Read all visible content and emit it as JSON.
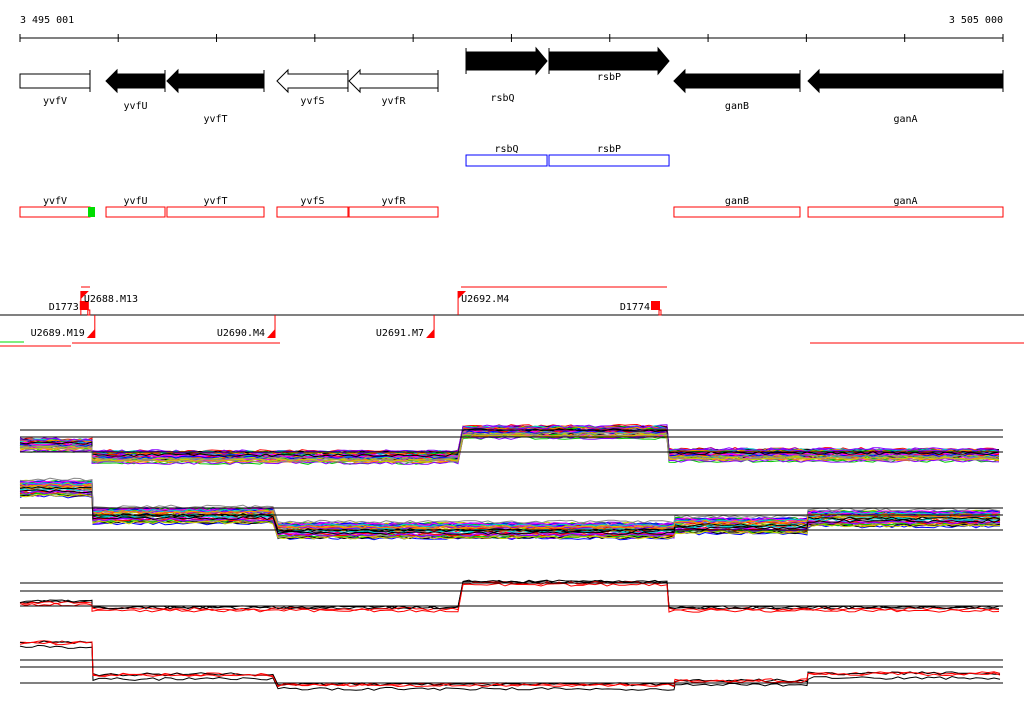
{
  "coordinates": {
    "start_label": "3 495 001",
    "end_label": "3 505 000",
    "start": 3495001,
    "end": 3505000,
    "tick_step": 1000
  },
  "genes": [
    {
      "name": "yvfV",
      "start": 3495001,
      "end": 3495713,
      "strand": "none",
      "fill": "#ffffff",
      "row": "lower"
    },
    {
      "name": "yvfU",
      "start": 3495876,
      "end": 3496476,
      "strand": "-",
      "fill": "#000000",
      "row": "lower"
    },
    {
      "name": "yvfT",
      "start": 3496496,
      "end": 3497483,
      "strand": "-",
      "fill": "#000000",
      "row": "lower"
    },
    {
      "name": "yvfS",
      "start": 3497615,
      "end": 3498337,
      "strand": "-",
      "fill": "#ffffff",
      "row": "lower"
    },
    {
      "name": "yvfR",
      "start": 3498348,
      "end": 3499253,
      "strand": "-",
      "fill": "#ffffff",
      "row": "lower"
    },
    {
      "name": "rsbQ",
      "start": 3499538,
      "end": 3500362,
      "strand": "+",
      "fill": "#000000",
      "row": "upper"
    },
    {
      "name": "rsbP",
      "start": 3500382,
      "end": 3501603,
      "strand": "+",
      "fill": "#000000",
      "row": "upper"
    },
    {
      "name": "ganB",
      "start": 3501653,
      "end": 3502935,
      "strand": "-",
      "fill": "#000000",
      "row": "lower"
    },
    {
      "name": "ganA",
      "start": 3503017,
      "end": 3505000,
      "strand": "-",
      "fill": "#000000",
      "row": "lower"
    }
  ],
  "blue_track": [
    {
      "name": "rsbQ",
      "start": 3499538,
      "end": 3500362
    },
    {
      "name": "rsbP",
      "start": 3500382,
      "end": 3501603
    }
  ],
  "red_track": [
    {
      "name": "yvfV",
      "start": 3495001,
      "end": 3495713
    },
    {
      "name": "yvfU",
      "start": 3495876,
      "end": 3496476
    },
    {
      "name": "yvfT",
      "start": 3496496,
      "end": 3497483
    },
    {
      "name": "yvfS",
      "start": 3497615,
      "end": 3498337
    },
    {
      "name": "yvfR",
      "start": 3498348,
      "end": 3499253
    },
    {
      "name": "ganB",
      "start": 3501653,
      "end": 3502935
    },
    {
      "name": "ganA",
      "start": 3503017,
      "end": 3505000
    }
  ],
  "red_track_highlight_color": "#00dd00",
  "markers_above": [
    {
      "name": "D1773",
      "pos": 3495640,
      "type": "block",
      "label_side": "left"
    },
    {
      "name": "U2688.M13",
      "pos": 3495620,
      "type": "flag",
      "label_side": "right"
    },
    {
      "name": "U2692.M4",
      "pos": 3499457,
      "type": "flag",
      "label_side": "right"
    },
    {
      "name": "D1774",
      "pos": 3501450,
      "type": "block",
      "label_side": "left"
    }
  ],
  "markers_below": [
    {
      "name": "U2689.M19",
      "pos": 3495762,
      "label_side": "left"
    },
    {
      "name": "U2690.M4",
      "pos": 3497595,
      "label_side": "left"
    },
    {
      "name": "U2691.M7",
      "pos": 3499213,
      "label_side": "left"
    }
  ],
  "colors": {
    "gene_fill": "#000000",
    "blue_box": "#0000ff",
    "red_box": "#ff0000",
    "marker": "#ff0000"
  },
  "expression_panels": [
    "multi-condition profile 1",
    "multi-condition profile 2",
    "summary profile 1",
    "summary profile 2"
  ]
}
